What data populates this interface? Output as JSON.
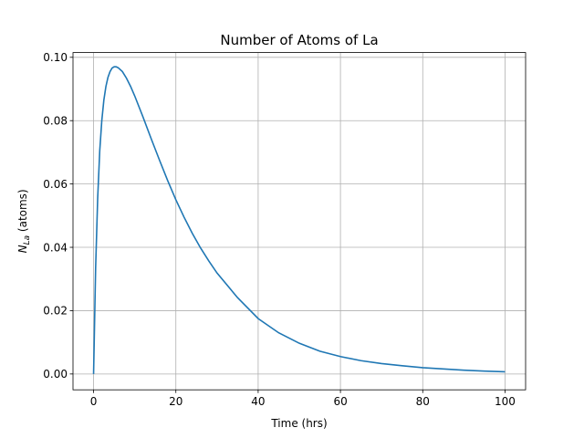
{
  "chart_data": {
    "type": "line",
    "title": "Number of Atoms of La",
    "xlabel": "Time (hrs)",
    "ylabel_main": "N",
    "ylabel_sub": "La",
    "ylabel_rest": " (atoms)",
    "xlim": [
      -5,
      105
    ],
    "ylim": [
      -0.005,
      0.1015
    ],
    "xticks": [
      0,
      20,
      40,
      60,
      80,
      100
    ],
    "yticks": [
      0.0,
      0.02,
      0.04,
      0.06,
      0.08,
      0.1
    ],
    "ytick_labels": [
      "0.00",
      "0.02",
      "0.04",
      "0.06",
      "0.08",
      "0.10"
    ],
    "grid": true,
    "series": [
      {
        "color": "#1f77b4",
        "x": [
          0,
          0.5,
          1,
          1.5,
          2,
          2.5,
          3,
          3.5,
          4,
          4.5,
          5,
          5.5,
          6,
          7,
          8,
          9,
          10,
          12,
          14,
          16,
          18,
          20,
          22,
          24,
          26,
          28,
          30,
          35,
          40,
          45,
          50,
          55,
          60,
          65,
          70,
          75,
          80,
          85,
          90,
          95,
          100
        ],
        "y": [
          0.0,
          0.0335,
          0.0555,
          0.0705,
          0.08,
          0.0865,
          0.0908,
          0.0937,
          0.0955,
          0.0966,
          0.097,
          0.097,
          0.0967,
          0.0955,
          0.0934,
          0.0908,
          0.0878,
          0.0812,
          0.0743,
          0.0676,
          0.0611,
          0.055,
          0.0495,
          0.0444,
          0.0398,
          0.0357,
          0.0319,
          0.0241,
          0.0175,
          0.013,
          0.0097,
          0.0072,
          0.0055,
          0.0042,
          0.0033,
          0.0026,
          0.002,
          0.0016,
          0.0012,
          0.0009,
          0.0007
        ]
      }
    ]
  }
}
